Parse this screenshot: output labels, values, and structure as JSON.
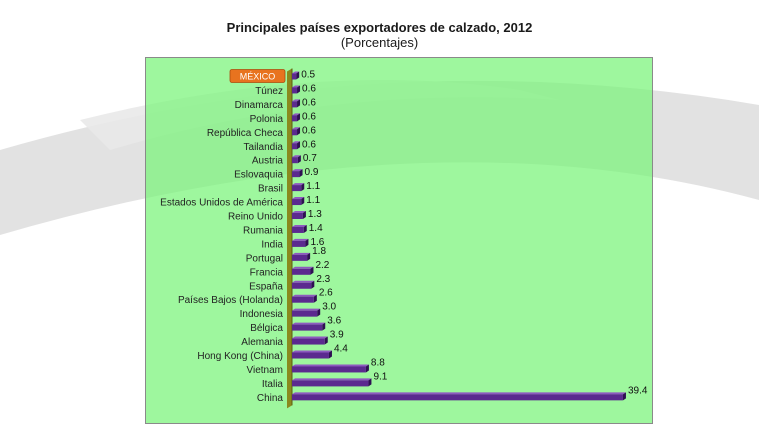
{
  "chart_data": {
    "type": "bar",
    "orientation": "horizontal",
    "title": "Principales países exportadores de calzado, 2012",
    "subtitle": "(Porcentajes)",
    "categories": [
      "MÉXICO",
      "Túnez",
      "Dinamarca",
      "Polonia",
      "República Checa",
      "Tailandia",
      "Austria",
      "Eslovaquia",
      "Brasil",
      "Estados Unidos de América",
      "Reino Unido",
      "Rumania",
      "India",
      "Portugal",
      "Francia",
      "España",
      "Países Bajos (Holanda)",
      "Indonesia",
      "Bélgica",
      "Alemania",
      "Hong Kong (China)",
      "Vietnam",
      "Italia",
      "China"
    ],
    "values": [
      0.5,
      0.6,
      0.6,
      0.6,
      0.6,
      0.6,
      0.7,
      0.9,
      1.1,
      1.1,
      1.3,
      1.4,
      1.6,
      1.8,
      2.2,
      2.3,
      2.6,
      3.0,
      3.6,
      3.9,
      4.4,
      8.8,
      9.1,
      39.4
    ],
    "value_labels": [
      "0.5",
      "0.6",
      "0.6",
      "0.6",
      "0.6",
      "0.6",
      "0.7",
      "0.9",
      "1.1",
      "1.1",
      "1.3",
      "1.4",
      "1.6",
      "1.8",
      "2.2",
      "2.3",
      "2.6",
      "3.0",
      "3.6",
      "3.9",
      "4.4",
      "8.8",
      "9.1",
      "39.4"
    ],
    "highlighted_category": "MÉXICO",
    "xlim": [
      0,
      40
    ],
    "grid": false,
    "legend": "none"
  },
  "colors": {
    "bar": "#5b2a8f",
    "bar_dark": "#2e1052",
    "bar_light": "#8e5ac0",
    "plot_background": "#9cf29c",
    "axis_wall": "#8a8a1e",
    "highlight_label": "#e8731f",
    "background_swoosh": "#dcdcdc"
  }
}
